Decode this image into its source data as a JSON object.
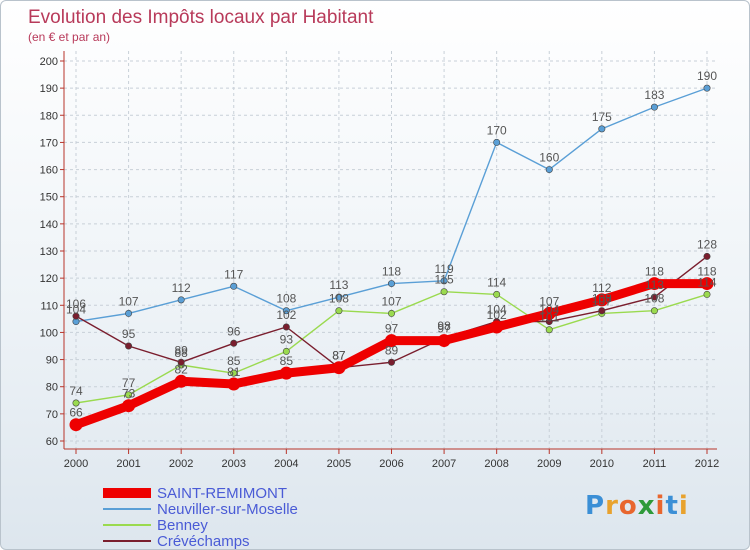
{
  "title": "Evolution des Impôts locaux par Habitant",
  "subtitle": "(en € et par an)",
  "brand": [
    "P",
    "r",
    "o",
    "x",
    "i",
    "t",
    "i"
  ],
  "brand_colors": [
    "#3b8fd6",
    "#e8a22e",
    "#e8662e",
    "#2e9a3a",
    "#e8662e",
    "#3b8fd6",
    "#e8a22e"
  ],
  "chart_data": {
    "type": "line",
    "title": "Evolution des Impôts locaux par Habitant",
    "ylabel": "(en € et par an)",
    "xlabel": "",
    "ylim": [
      60,
      200
    ],
    "ytick_step": 10,
    "x": [
      "2000",
      "2001",
      "2002",
      "2003",
      "2004",
      "2005",
      "2006",
      "2007",
      "2008",
      "2009",
      "2010",
      "2011",
      "2012"
    ],
    "grid": true,
    "legend": "bottom-left",
    "series": [
      {
        "name": "SAINT-REMIMONT",
        "color": "#ee0000",
        "values": [
          66,
          73,
          82,
          81,
          85,
          87,
          97,
          97,
          102,
          107,
          112,
          118,
          118
        ]
      },
      {
        "name": "Neuviller-sur-Moselle",
        "color": "#5a9fd6",
        "values": [
          104,
          107,
          112,
          117,
          108,
          113,
          118,
          119,
          170,
          160,
          175,
          183,
          190
        ]
      },
      {
        "name": "Benney",
        "color": "#9ada4f",
        "values": [
          74,
          77,
          88,
          85,
          93,
          108,
          107,
          115,
          114,
          101,
          107,
          108,
          114
        ]
      },
      {
        "name": "Crévéchamps",
        "color": "#7a1e2e",
        "values": [
          106,
          95,
          89,
          96,
          102,
          87,
          89,
          98,
          104,
          104,
          108,
          113,
          128
        ]
      }
    ]
  }
}
